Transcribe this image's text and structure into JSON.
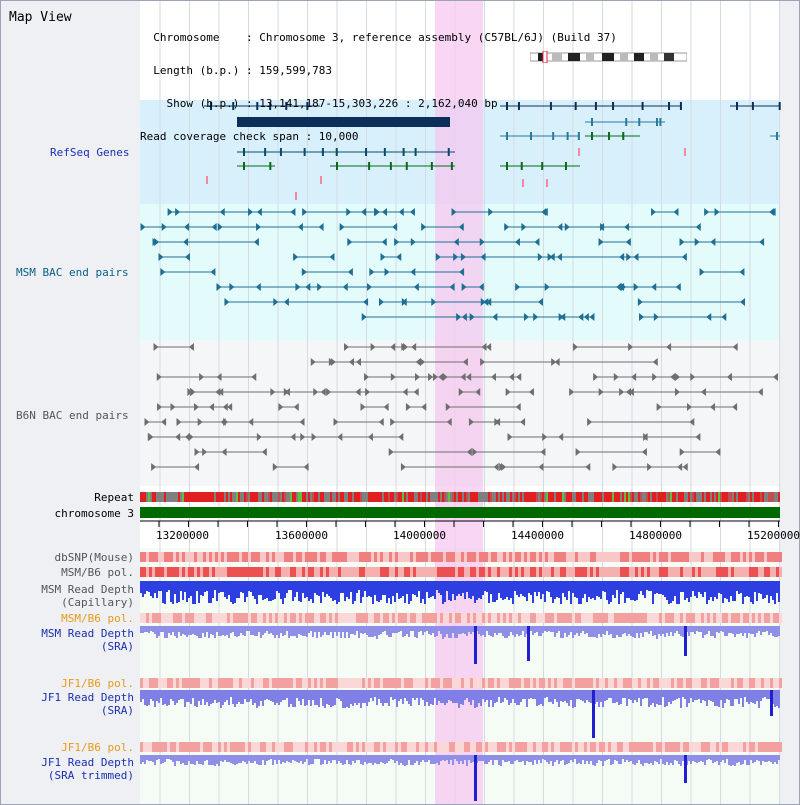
{
  "panel": {
    "title": "Map View"
  },
  "header": {
    "lines": [
      "  Chromosome    : Chromosome 3, reference assembly (C57BL/6J) (Build 37)",
      "  Length (b.p.) : 159,599,783",
      "    Show (b.p.) : 13,141,187-15,303,226 : 2,162,040 bp",
      "Read coverage check span : 10,000"
    ]
  },
  "tracks": {
    "refseq": "RefSeq Genes",
    "msm_bac": "MSM BAC end pairs",
    "b6n_bac": "B6N BAC end pairs",
    "repeat": "Repeat",
    "chromosome": "chromosome 3",
    "dbsnp": "dbSNP(Mouse)",
    "msm_b6_pol1": "MSM/B6 pol.",
    "msm_read_depth_cap_1": "MSM Read Depth",
    "msm_read_depth_cap_2": "(Capillary)",
    "msm_b6_pol2": "MSM/B6 pol.",
    "msm_read_depth_sra_1": "MSM Read Depth",
    "msm_read_depth_sra_2": "(SRA)",
    "jf1_b6_pol1": "JF1/B6 pol.",
    "jf1_read_depth_sra_1": "JF1 Read Depth",
    "jf1_read_depth_sra_2": "(SRA)",
    "jf1_b6_pol2": "JF1/B6 pol.",
    "jf1_read_depth_trim_1": "JF1 Read Depth",
    "jf1_read_depth_trim_2": "(SRA trimmed)"
  },
  "axis": {
    "ticks": [
      "13200000",
      "13600000",
      "14000000",
      "14400000",
      "14800000",
      "15200000"
    ]
  },
  "colors": {
    "label_blue": "#1a2fb0",
    "label_teal": "#0a5f86",
    "label_gray": "#555555",
    "label_orange": "#e79a18",
    "highlight": "#f6c8f0",
    "refseq_bg": "#d8f0fb",
    "msm_bg": "#e3fbfb",
    "chromosome": "#006a00"
  }
}
